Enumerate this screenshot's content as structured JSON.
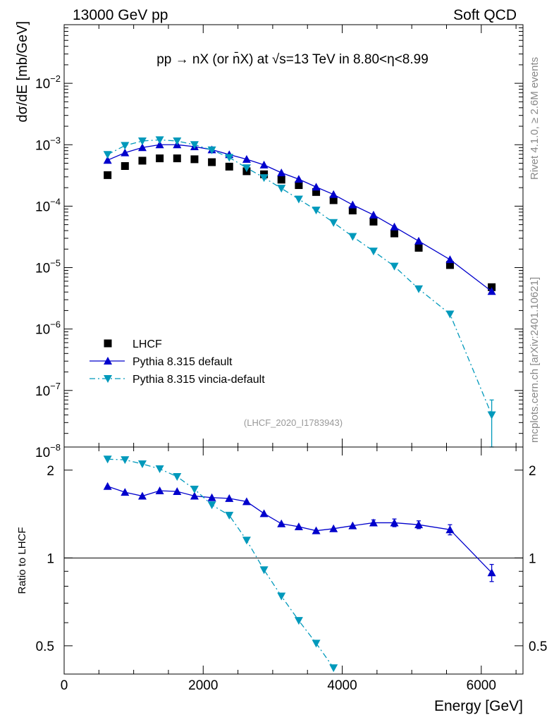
{
  "header": {
    "left": "13000 GeV pp",
    "right": "Soft QCD"
  },
  "side_labels": {
    "rivet": "Rivet 4.1.0, ≥ 2.6M events",
    "mcplots": "mcplots.cern.ch [arXiv:2401.10621]"
  },
  "chart_data": {
    "type": "scatter",
    "title": "pp → nX (or n̄X) at √s=13 TeV in 8.80<η<8.99",
    "watermark": "(LHCF_2020_I1783943)",
    "xlabel": "Energy [GeV]",
    "xlim": [
      0,
      6600
    ],
    "x_ticks": [
      0,
      2000,
      4000,
      6000
    ],
    "x_tick_labels": [
      "0",
      "2000",
      "4000",
      "6000"
    ],
    "x": [
      625,
      875,
      1125,
      1375,
      1625,
      1875,
      2125,
      2375,
      2625,
      2875,
      3125,
      3375,
      3625,
      3875,
      4150,
      4450,
      4750,
      5100,
      5550,
      6150
    ],
    "main": {
      "ylabel": "dσ/dE [mb/GeV]",
      "yscale": "log",
      "ylim": [
        1.2e-08,
        0.09
      ],
      "y_ticks": [
        1e-08,
        1e-07,
        1e-06,
        1e-05,
        0.0001,
        0.001,
        0.01
      ],
      "y_tick_labels": [
        {
          "base": "10",
          "exp": "−8"
        },
        {
          "base": "10",
          "exp": "−7"
        },
        {
          "base": "10",
          "exp": "−6"
        },
        {
          "base": "10",
          "exp": "−5"
        },
        {
          "base": "10",
          "exp": "−4"
        },
        {
          "base": "10",
          "exp": "−3"
        },
        {
          "base": "10",
          "exp": "−2"
        }
      ],
      "legend_position": "bottom-left",
      "series": [
        {
          "name": "LHCF",
          "color": "#000000",
          "marker": "square",
          "line": "none",
          "values": [
            0.00032,
            0.00045,
            0.00055,
            0.0006,
            0.0006,
            0.00058,
            0.00052,
            0.00044,
            0.00037,
            0.00033,
            0.00027,
            0.00022,
            0.00017,
            0.000125,
            8.5e-05,
            5.6e-05,
            3.6e-05,
            2.1e-05,
            1.1e-05,
            4.8e-06
          ]
        },
        {
          "name": "Pythia 8.315 default",
          "color": "#0000cc",
          "marker": "triangle-up",
          "line": "solid",
          "values": [
            0.00056,
            0.00074,
            0.0009,
            0.001,
            0.001,
            0.00093,
            0.00083,
            0.00069,
            0.00058,
            0.00047,
            0.00035,
            0.000275,
            0.000205,
            0.000155,
            0.000105,
            7.2e-05,
            4.6e-05,
            2.7e-05,
            1.35e-05,
            4.1e-06
          ]
        },
        {
          "name": "Pythia 8.315 vincia-default",
          "color": "#0099bb",
          "marker": "triangle-down",
          "line": "dashdot",
          "values": [
            0.00069,
            0.00097,
            0.00115,
            0.0012,
            0.00115,
            0.001,
            0.00082,
            0.00062,
            0.00042,
            0.00029,
            0.000195,
            0.00013,
            8.6e-05,
            5.4e-05,
            3.2e-05,
            1.85e-05,
            1.05e-05,
            4.5e-06,
            1.75e-06,
            4e-08
          ],
          "last_point_error": [
            1.2e-08,
            7e-08
          ]
        }
      ]
    },
    "ratio": {
      "ylabel": "Ratio to LHCF",
      "yscale": "log",
      "ylim": [
        0.4,
        2.4
      ],
      "reference": 1,
      "y_ticks": [
        0.5,
        1,
        2
      ],
      "y_tick_labels": [
        "0.5",
        "1",
        "2"
      ],
      "series": [
        {
          "name": "Pythia 8.315 default",
          "color": "#0000cc",
          "marker": "triangle-up",
          "line": "solid",
          "values": [
            1.76,
            1.68,
            1.63,
            1.7,
            1.69,
            1.63,
            1.61,
            1.6,
            1.56,
            1.42,
            1.31,
            1.28,
            1.24,
            1.26,
            1.29,
            1.32,
            1.32,
            1.3,
            1.25,
            0.89
          ],
          "error_low": [
            0,
            0,
            0,
            0,
            0,
            0,
            0,
            0,
            0,
            0,
            0,
            0,
            0,
            0,
            0,
            0.03,
            0.04,
            0.04,
            0.05,
            0.06
          ],
          "error_high": [
            0,
            0,
            0,
            0,
            0,
            0,
            0,
            0,
            0,
            0,
            0,
            0,
            0,
            0,
            0,
            0.03,
            0.04,
            0.04,
            0.05,
            0.06
          ]
        },
        {
          "name": "Pythia 8.315 vincia-default",
          "color": "#0099bb",
          "marker": "triangle-down",
          "line": "dashdot",
          "values": [
            2.18,
            2.17,
            2.1,
            2.02,
            1.9,
            1.72,
            1.52,
            1.4,
            1.15,
            0.91,
            0.74,
            0.61,
            0.51,
            0.42
          ]
        }
      ]
    }
  }
}
